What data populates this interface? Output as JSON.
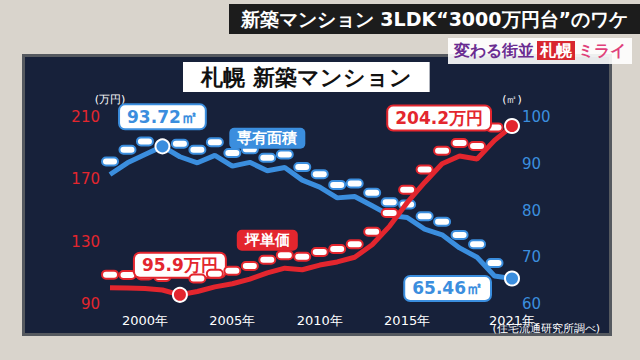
{
  "chart_data": {
    "type": "line",
    "title": "札幌 新築マンション",
    "banner": "新築マンション 3LDK“3000万円台”のワケ",
    "logo": [
      "変わる街並",
      "札幌",
      "ミライ"
    ],
    "source": "(住宅流通研究所調べ)",
    "y_label": "(万円)",
    "y2_label": "(㎡)",
    "categories": [
      null,
      null,
      "2000年",
      null,
      null,
      null,
      null,
      "2005年",
      null,
      null,
      null,
      null,
      "2010年",
      null,
      null,
      null,
      null,
      "2015年",
      null,
      null,
      null,
      null,
      null,
      "2021年"
    ],
    "ylim": [
      90,
      210
    ],
    "yticks": [
      90,
      130,
      170,
      210
    ],
    "y2lim": [
      60,
      100
    ],
    "y2ticks": [
      60,
      70,
      80,
      90,
      100
    ],
    "grid": false,
    "data_labels": true,
    "series": [
      {
        "name": "専有面積",
        "color": "#3b8ede",
        "axis": "y2",
        "marker": "circle",
        "values": [
          87.7,
          90.2,
          92.0,
          93.72,
          91.5,
          90.2,
          91.8,
          89.5,
          90.3,
          88.5,
          89.2,
          86.5,
          85.0,
          82.7,
          83.0,
          81.0,
          79.0,
          78.5,
          76.0,
          74.8,
          72.0,
          70.0,
          66.0,
          65.46
        ],
        "value_labels": [
          null,
          null,
          null,
          "93.72㎡",
          null,
          null,
          null,
          null,
          null,
          null,
          null,
          null,
          null,
          null,
          null,
          null,
          null,
          null,
          null,
          null,
          null,
          null,
          null,
          "65.46㎡"
        ]
      },
      {
        "name": "坪単価",
        "color": "#e3262e",
        "axis": "y",
        "marker": "circle",
        "values": [
          100.5,
          100.3,
          100.0,
          99.0,
          95.9,
          98.0,
          101.0,
          103.0,
          106.0,
          110.0,
          113.0,
          112.0,
          115.0,
          117.0,
          120.0,
          128.0,
          140.0,
          155.0,
          168.0,
          180.0,
          185.0,
          183.0,
          195.0,
          204.2
        ],
        "value_labels": [
          null,
          null,
          null,
          null,
          "95.9万円",
          null,
          null,
          null,
          null,
          null,
          null,
          null,
          null,
          null,
          null,
          null,
          null,
          null,
          null,
          null,
          null,
          null,
          null,
          "204.2万円"
        ]
      }
    ]
  }
}
